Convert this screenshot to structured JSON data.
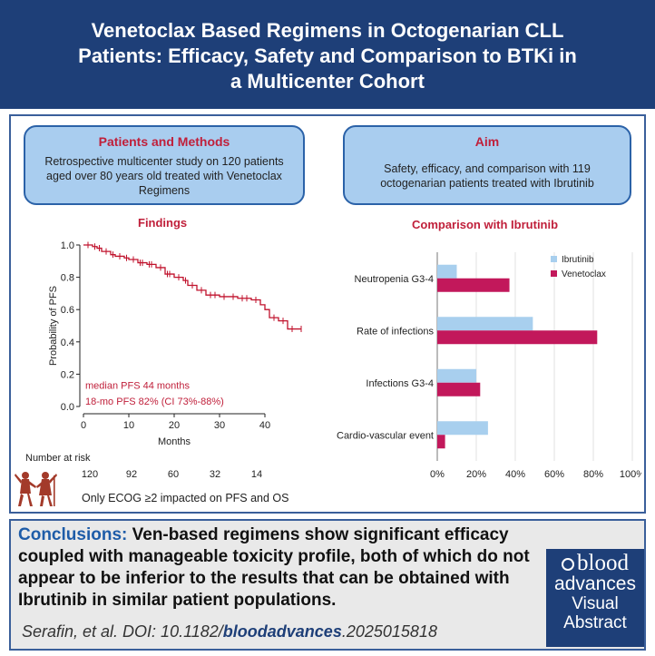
{
  "header": {
    "title_lines": [
      "Venetoclax Based Regimens in Octogenarian CLL",
      "Patients: Efficacy, Safety and Comparison to BTKi in",
      "a Multicenter Cohort"
    ]
  },
  "patients_methods": {
    "title": "Patients and Methods",
    "body": "Retrospective multicenter study on 120 patients aged over 80 years old treated with Venetoclax Regimens"
  },
  "aim": {
    "title": "Aim",
    "body": "Safety, efficacy, and comparison with 119 octogenarian patients treated with Ibrutinib"
  },
  "findings": {
    "title": "Findings",
    "median_pfs": "median PFS 44 months",
    "pfs_18mo": "18-mo PFS 82% (CI 73%-88%)",
    "number_at_risk_label": "Number at risk",
    "number_at_risk": [
      "120",
      "92",
      "60",
      "32",
      "14"
    ],
    "note": "Only ECOG ≥2 impacted on PFS and OS",
    "icon": "elderly-dancers-icon"
  },
  "comparison": {
    "title": "Comparison with Ibrutinib"
  },
  "chart_data": [
    {
      "type": "line",
      "title": "",
      "xlabel": "Months",
      "ylabel": "Probability of PFS",
      "xlim": [
        0,
        50
      ],
      "ylim": [
        0,
        1.0
      ],
      "x_ticks": [
        "0",
        "10",
        "20",
        "30",
        "40"
      ],
      "y_ticks": [
        "0.0",
        "0.2",
        "0.4",
        "0.6",
        "0.8",
        "1.0"
      ],
      "step": true,
      "series": [
        {
          "name": "PFS",
          "x": [
            0,
            2,
            3,
            4,
            6,
            7,
            9,
            10,
            12,
            14,
            16,
            18,
            20,
            22,
            23,
            25,
            27,
            30,
            34,
            37,
            39,
            40,
            41,
            43,
            45,
            48
          ],
          "y": [
            1.0,
            0.99,
            0.98,
            0.96,
            0.94,
            0.93,
            0.92,
            0.91,
            0.89,
            0.88,
            0.86,
            0.82,
            0.8,
            0.78,
            0.75,
            0.72,
            0.69,
            0.68,
            0.67,
            0.66,
            0.63,
            0.6,
            0.55,
            0.53,
            0.48,
            0.48
          ]
        }
      ],
      "censor_x": [
        1,
        2.5,
        3.5,
        5,
        6.5,
        8,
        9.5,
        11,
        12.5,
        13,
        14.5,
        15,
        17,
        18.5,
        19,
        21,
        22.5,
        24,
        26,
        28,
        29,
        31,
        33,
        35,
        36,
        38,
        42,
        44,
        46,
        48
      ]
    },
    {
      "type": "bar",
      "orientation": "horizontal",
      "categories": [
        "Neutropenia G3-4",
        "Rate of infections",
        "Infections G3-4",
        "Cardio-vascular event"
      ],
      "series": [
        {
          "name": "Ibrutinib",
          "color": "#a8cfee",
          "values": [
            10,
            49,
            20,
            26
          ]
        },
        {
          "name": "Venetoclax",
          "color": "#c2185b",
          "values": [
            37,
            82,
            22,
            4
          ]
        }
      ],
      "xlim": [
        0,
        100
      ],
      "x_ticks": [
        "0%",
        "20%",
        "40%",
        "60%",
        "80%",
        "100%"
      ],
      "legend": "top-right"
    }
  ],
  "conclusion": {
    "label": "Conclusions:",
    "text": "Ven-based regimens show significant efficacy coupled with manageable toxicity profile, both of which do not appear to be inferior to the results that can be obtained with Ibrutinib in similar patient populations."
  },
  "citation": {
    "prefix": "Serafin, et al. DOI: 10.1182/",
    "journal": "bloodadvances",
    "suffix": ".2025015818"
  },
  "logo": {
    "line1": "blood",
    "line2": "advances",
    "line3": "Visual",
    "line4": "Abstract"
  },
  "colors": {
    "header_bg": "#1e3f78",
    "accent_red": "#c01f3a",
    "box_fill": "#a9cdef",
    "km_line": "#c0122c"
  }
}
